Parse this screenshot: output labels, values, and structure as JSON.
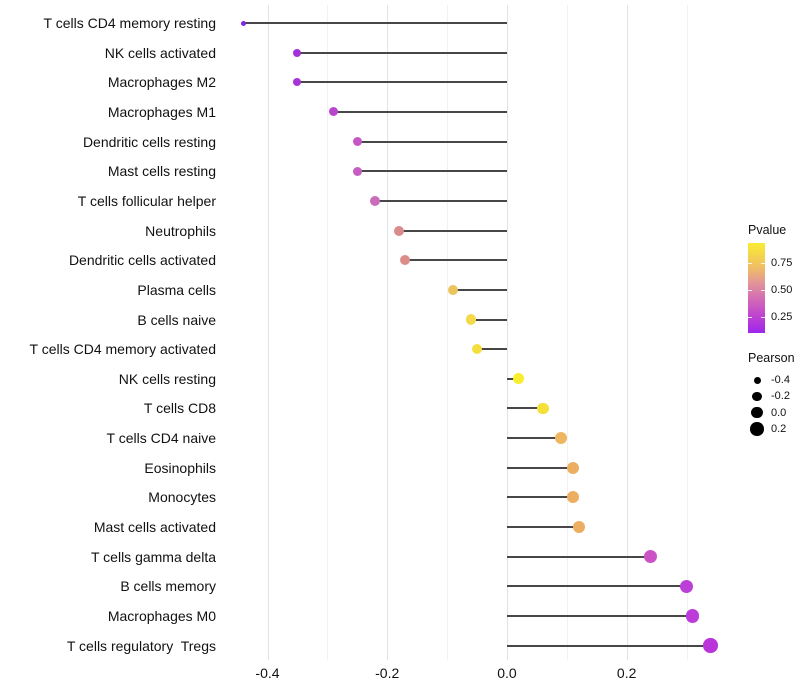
{
  "chart_data": {
    "type": "lollipop",
    "title": "",
    "xlabel": "",
    "ylabel": "",
    "description": "Horizontal lollipop chart of Pearson correlation per immune cell type; point color encodes P-value, point size encodes Pearson correlation",
    "x_axis": {
      "domain_min": -0.476,
      "domain_max": 0.376,
      "major_ticks": [
        -0.4,
        -0.2,
        0.0,
        0.2
      ],
      "tick_labels": [
        "-0.4",
        "-0.2",
        "0.0",
        "0.2"
      ],
      "minor_gridlines": [
        -0.3,
        -0.1,
        0.1,
        0.3
      ],
      "grid": true
    },
    "baseline_value": 0.0,
    "points": [
      {
        "label": "T cells CD4 memory resting",
        "pearson": -0.44,
        "pvalue_approx": 0.02,
        "color": "#8524E3",
        "diameter": 5
      },
      {
        "label": "NK cells activated",
        "pearson": -0.35,
        "pvalue_approx": 0.07,
        "color": "#A231DC",
        "diameter": 8
      },
      {
        "label": "Macrophages M2",
        "pearson": -0.35,
        "pvalue_approx": 0.08,
        "color": "#A734D9",
        "diameter": 8
      },
      {
        "label": "Macrophages M1",
        "pearson": -0.29,
        "pvalue_approx": 0.15,
        "color": "#B846CD",
        "diameter": 9
      },
      {
        "label": "Dendritic cells resting",
        "pearson": -0.25,
        "pvalue_approx": 0.22,
        "color": "#C557C5",
        "diameter": 9.5
      },
      {
        "label": "Mast cells resting",
        "pearson": -0.25,
        "pvalue_approx": 0.23,
        "color": "#C75DC1",
        "diameter": 9.5
      },
      {
        "label": "T cells follicular helper",
        "pearson": -0.22,
        "pvalue_approx": 0.3,
        "color": "#CA6CBB",
        "diameter": 10
      },
      {
        "label": "Neutrophils",
        "pearson": -0.18,
        "pvalue_approx": 0.45,
        "color": "#DA8B8C",
        "diameter": 10
      },
      {
        "label": "Dendritic cells activated",
        "pearson": -0.17,
        "pvalue_approx": 0.46,
        "color": "#DB8D89",
        "diameter": 10
      },
      {
        "label": "Plasma cells",
        "pearson": -0.09,
        "pvalue_approx": 0.68,
        "color": "#ECC45E",
        "diameter": 10.5
      },
      {
        "label": "B cells naive",
        "pearson": -0.06,
        "pvalue_approx": 0.75,
        "color": "#F3D94B",
        "diameter": 10.5
      },
      {
        "label": "T cells CD4 memory activated",
        "pearson": -0.05,
        "pvalue_approx": 0.78,
        "color": "#F5DF3E",
        "diameter": 10.5
      },
      {
        "label": "NK cells resting",
        "pearson": 0.02,
        "pvalue_approx": 0.9,
        "color": "#F9ED2E",
        "diameter": 11
      },
      {
        "label": "T cells CD8",
        "pearson": 0.06,
        "pvalue_approx": 0.8,
        "color": "#F5E03A",
        "diameter": 11.5
      },
      {
        "label": "T cells CD4 naive",
        "pearson": 0.09,
        "pvalue_approx": 0.6,
        "color": "#EEB660",
        "diameter": 12
      },
      {
        "label": "Eosinophils",
        "pearson": 0.11,
        "pvalue_approx": 0.57,
        "color": "#ECAF62",
        "diameter": 12
      },
      {
        "label": "Monocytes",
        "pearson": 0.11,
        "pvalue_approx": 0.57,
        "color": "#ECAF62",
        "diameter": 12
      },
      {
        "label": "Mast cells activated",
        "pearson": 0.12,
        "pvalue_approx": 0.56,
        "color": "#ECAE63",
        "diameter": 12
      },
      {
        "label": "T cells gamma delta",
        "pearson": 0.24,
        "pvalue_approx": 0.25,
        "color": "#CC53C6",
        "diameter": 13
      },
      {
        "label": "B cells memory",
        "pearson": 0.3,
        "pvalue_approx": 0.15,
        "color": "#BC3FD7",
        "diameter": 13.5
      },
      {
        "label": "Macrophages M0",
        "pearson": 0.31,
        "pvalue_approx": 0.14,
        "color": "#BB3CD8",
        "diameter": 13.5
      },
      {
        "label": "T cells regulatory  Tregs",
        "pearson": 0.34,
        "pvalue_approx": 0.12,
        "color": "#B935DB",
        "diameter": 14.5
      }
    ],
    "legend": {
      "position": "right",
      "pvalue": {
        "title": "Pvalue",
        "domain_min": 0.1,
        "domain_max": 0.94,
        "ticks": [
          0.75,
          0.5,
          0.25
        ],
        "tick_labels": [
          "0.75",
          "0.50",
          "0.25"
        ],
        "gradient_stops_bottom_to_top": [
          {
            "pos": 0,
            "color": "#9D26EC"
          },
          {
            "pos": 0.18,
            "color": "#BE41D2"
          },
          {
            "pos": 0.38,
            "color": "#D36BB4"
          },
          {
            "pos": 0.55,
            "color": "#E2939A"
          },
          {
            "pos": 0.72,
            "color": "#F0BC67"
          },
          {
            "pos": 1,
            "color": "#F9EC33"
          }
        ]
      },
      "pearson": {
        "title": "Pearson",
        "items": [
          {
            "label": "-0.4",
            "diameter": 7
          },
          {
            "label": "-0.2",
            "diameter": 9.5
          },
          {
            "label": "0.0",
            "diameter": 11.5
          },
          {
            "label": "0.2",
            "diameter": 13.5
          }
        ],
        "dot_color": "#000000"
      }
    },
    "stem_color": "#474747",
    "background_color": "#ffffff"
  }
}
